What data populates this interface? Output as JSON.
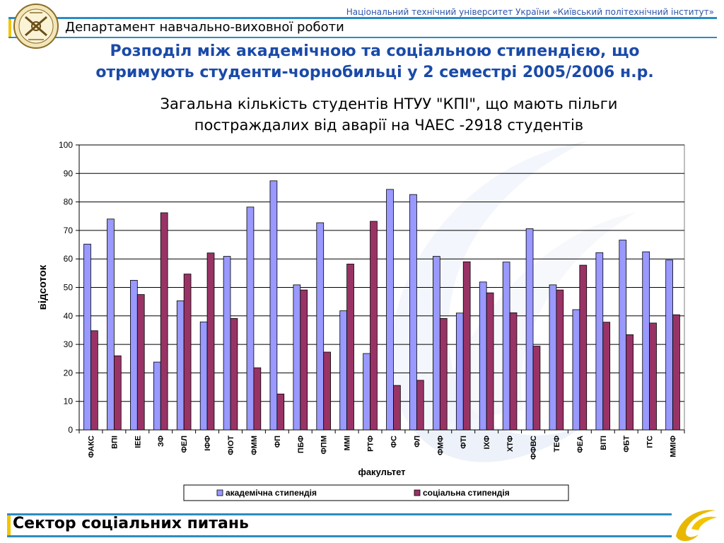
{
  "header": {
    "university": "Національний технічний університет України «Київський політехнічний інститут»",
    "department": "Департамент навчально-виховної роботи"
  },
  "main_title": {
    "line1": "Розподіл між академічною та соціальною стипендією, що",
    "line2": "отримують студенти-чорнобильці у 2 семестрі 2005/2006 н.р."
  },
  "subtitle": {
    "line1": "Загальна кількість студентів НТУУ \"КПІ\", що мають пільги",
    "line2": "постраждалих від аварії на ЧАЕС -2918 студентів"
  },
  "footer": {
    "label": "Сектор соціальних питань"
  },
  "colors": {
    "academic": "#9999ff",
    "social": "#993366",
    "title": "#1a4aa8",
    "accent_line": "#2b8cc4",
    "accent_yellow": "#f2c500"
  },
  "chart_data": {
    "type": "bar",
    "xlabel": "факультет",
    "ylabel": "відсоток",
    "ylim": [
      0,
      100
    ],
    "yticks": [
      0,
      10,
      20,
      30,
      40,
      50,
      60,
      70,
      80,
      90,
      100
    ],
    "grid": true,
    "legend_position": "bottom",
    "categories": [
      "ФАКС",
      "ВПІ",
      "ІЕЕ",
      "ЗФ",
      "ФЕЛ",
      "ІФФ",
      "ФІОТ",
      "ФММ",
      "ФП",
      "ПБФ",
      "ФПМ",
      "ММІ",
      "РТФ",
      "ФС",
      "ФЛ",
      "ФМФ",
      "ФТІ",
      "ІХФ",
      "ХТФ",
      "ФФВС",
      "ТЕФ",
      "ФЕА",
      "ВІТІ",
      "ФБТ",
      "ІТС",
      "ММІФ"
    ],
    "series": [
      {
        "name": "академічна стипендія",
        "values": [
          65.2,
          74,
          52.5,
          23.8,
          45.3,
          37.9,
          60.9,
          78.2,
          87.4,
          50.9,
          72.7,
          41.8,
          26.8,
          84.4,
          82.6,
          60.9,
          41,
          51.9,
          58.9,
          70.6,
          50.9,
          42.2,
          62.2,
          66.6,
          62.5,
          59.6
        ]
      },
      {
        "name": "соціальна стипендія",
        "values": [
          34.8,
          26,
          47.5,
          76.2,
          54.7,
          62.1,
          39.1,
          21.8,
          12.6,
          49.1,
          27.3,
          58.2,
          73.2,
          15.6,
          17.4,
          39.1,
          59,
          48.1,
          41.1,
          29.4,
          49.1,
          57.8,
          37.8,
          33.4,
          37.5,
          40.4
        ]
      }
    ]
  }
}
